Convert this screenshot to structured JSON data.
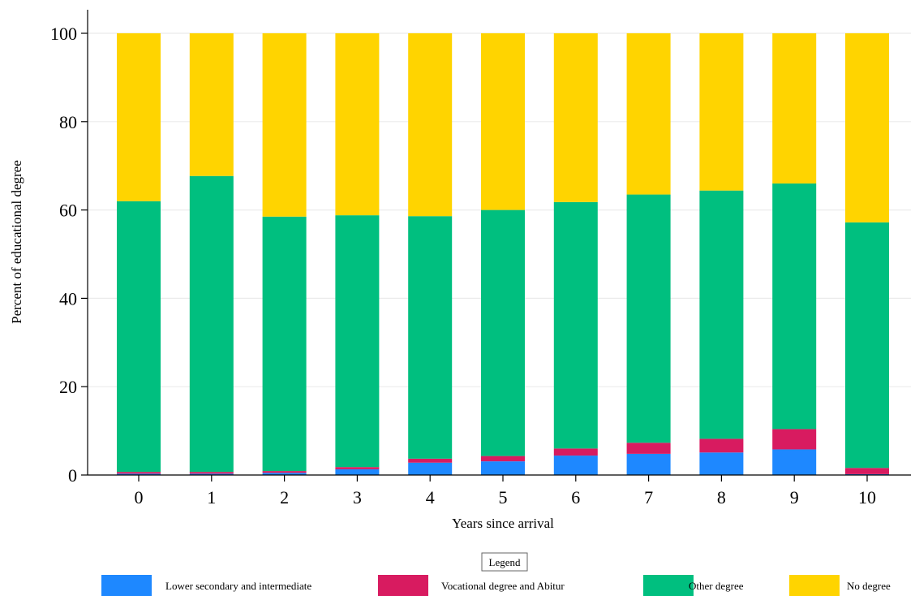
{
  "chart_data": {
    "type": "bar",
    "stacked": true,
    "xlabel": "Years since arrival",
    "ylabel": "Percent of educational degree",
    "ylim": [
      0,
      100
    ],
    "yticks": [
      0,
      20,
      40,
      60,
      80,
      100
    ],
    "grid": true,
    "legend_title": "Legend",
    "legend_position": "bottom",
    "categories": [
      "0",
      "1",
      "2",
      "3",
      "4",
      "5",
      "6",
      "7",
      "8",
      "9",
      "10"
    ],
    "series": [
      {
        "name": "Lower secondary and intermediate",
        "color": "#1E88FF",
        "values": [
          0.3,
          0.3,
          0.5,
          1.3,
          2.8,
          3.1,
          4.4,
          4.8,
          5.1,
          5.8,
          0.2
        ]
      },
      {
        "name": "Vocational degree and Abitur",
        "color": "#D81B60",
        "values": [
          0.4,
          0.4,
          0.4,
          0.5,
          0.9,
          1.2,
          1.6,
          2.5,
          3.1,
          4.6,
          1.4
        ]
      },
      {
        "name": "Other degree",
        "color": "#00BF7F",
        "values": [
          61.3,
          67.0,
          57.6,
          57.0,
          54.9,
          55.7,
          55.8,
          56.2,
          56.2,
          55.6,
          55.6
        ]
      },
      {
        "name": "No degree",
        "color": "#FFD400",
        "values": [
          38.0,
          32.3,
          41.5,
          41.2,
          41.4,
          40.0,
          38.2,
          36.5,
          35.6,
          34.0,
          42.8
        ]
      }
    ]
  }
}
